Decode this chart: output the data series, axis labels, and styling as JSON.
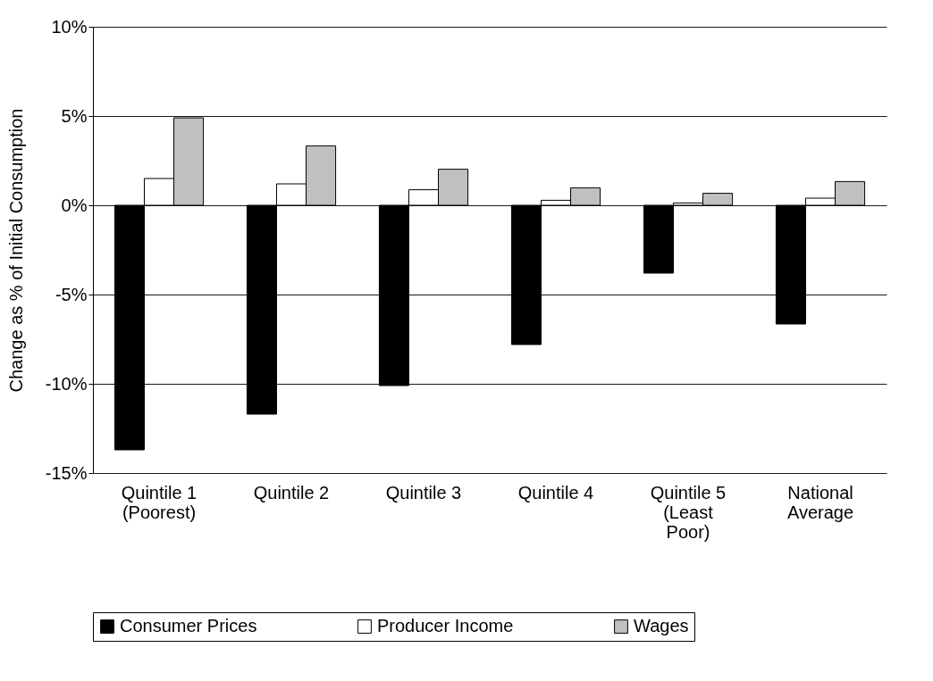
{
  "chart_data": {
    "type": "bar",
    "ylabel": "Change as % of Initial Consumption",
    "categories": [
      "Quintile 1\n(Poorest)",
      "Quintile 2",
      "Quintile 3",
      "Quintile 4",
      "Quintile 5\n(Least\nPoor)",
      "National\nAverage"
    ],
    "series": [
      {
        "name": "Consumer Prices",
        "color": "#000000",
        "values": [
          -13.7,
          -11.7,
          -10.1,
          -7.8,
          -3.8,
          -6.65
        ]
      },
      {
        "name": "Producer Income",
        "color": "#ffffff",
        "values": [
          1.5,
          1.2,
          0.87,
          0.28,
          0.13,
          0.4
        ]
      },
      {
        "name": "Wages",
        "color": "#c0c0c0",
        "values": [
          4.9,
          3.33,
          2.02,
          0.98,
          0.67,
          1.33
        ]
      }
    ],
    "ylim": [
      -15,
      10
    ],
    "yticks": [
      {
        "value": -15,
        "label": "-15%"
      },
      {
        "value": -10,
        "label": "-10%"
      },
      {
        "value": -5,
        "label": "-5%"
      },
      {
        "value": 0,
        "label": "0%"
      },
      {
        "value": 5,
        "label": "5%"
      },
      {
        "value": 10,
        "label": "10%"
      }
    ],
    "grid": "y",
    "legend": "bottom"
  }
}
